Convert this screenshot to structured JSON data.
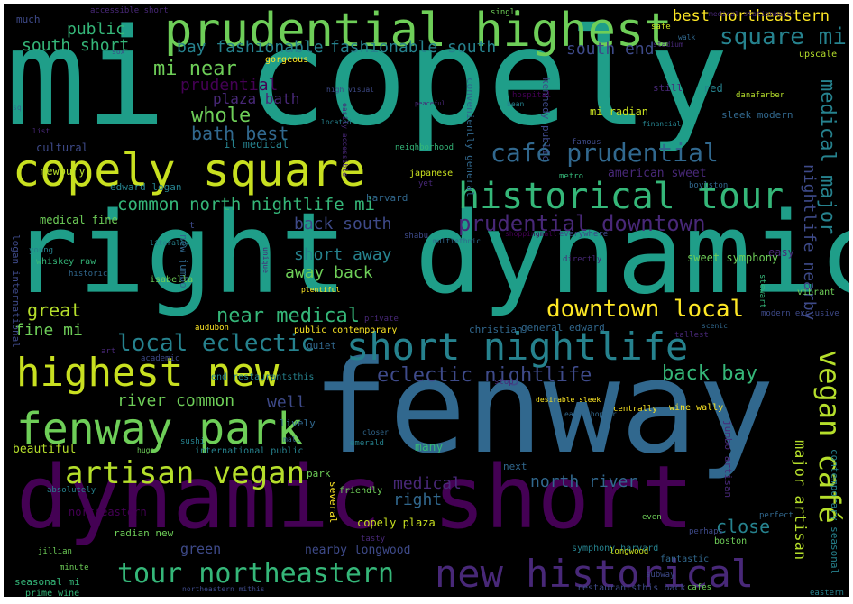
{
  "background": "#000000",
  "palette": [
    "#440154",
    "#482878",
    "#3e4a89",
    "#31688e",
    "#26828e",
    "#1f9e89",
    "#35b779",
    "#6ece58",
    "#b5de2b",
    "#fde725"
  ],
  "words": [
    {
      "text": "mi copely",
      "color": "#1f9e89"
    },
    {
      "text": "right dynamic",
      "color": "#1f9e89"
    },
    {
      "text": "fenway",
      "color": "#31688e"
    },
    {
      "text": "dynamic short",
      "color": "#440154"
    },
    {
      "text": "prudential highest",
      "color": "#6ece58"
    },
    {
      "text": "copely square",
      "color": "#c8e020"
    },
    {
      "text": "historical tour",
      "color": "#35b779"
    },
    {
      "text": "short nightlife",
      "color": "#26828e"
    },
    {
      "text": "highest new",
      "color": "#c8e020"
    },
    {
      "text": "fenway park",
      "color": "#6ece58"
    },
    {
      "text": "new historical",
      "color": "#482878"
    },
    {
      "text": "artisan vegan",
      "color": "#b5de2b"
    },
    {
      "text": "tour northeastern",
      "color": "#35b779"
    },
    {
      "text": "vegan café",
      "color": "#b5de2b"
    },
    {
      "text": "café prudential",
      "color": "#31688e"
    },
    {
      "text": "prudential downtown",
      "color": "#482878"
    },
    {
      "text": "downtown local",
      "color": "#fde725"
    },
    {
      "text": "local eclectic",
      "color": "#26828e"
    },
    {
      "text": "eclectic nightlife",
      "color": "#3e4a89"
    },
    {
      "text": "square mi",
      "color": "#26828e"
    },
    {
      "text": "best northeastern",
      "color": "#fde725"
    },
    {
      "text": "common north nightlife mi",
      "color": "#35b779"
    },
    {
      "text": "bay fashionable",
      "color": "#26828e"
    },
    {
      "text": "fashionable south",
      "color": "#26828e"
    },
    {
      "text": "south end",
      "color": "#3e4a89"
    },
    {
      "text": "public",
      "color": "#35b779"
    },
    {
      "text": "south short",
      "color": "#35b779"
    },
    {
      "text": "mi near",
      "color": "#6ece58"
    },
    {
      "text": "prudential",
      "color": "#440154"
    },
    {
      "text": "plaza bath",
      "color": "#482878"
    },
    {
      "text": "whole",
      "color": "#6ece58"
    },
    {
      "text": "bath best",
      "color": "#31688e"
    },
    {
      "text": "medical major",
      "color": "#26828e"
    },
    {
      "text": "nightlife nearby",
      "color": "#3e4a89"
    },
    {
      "text": "back south",
      "color": "#3e4a89"
    },
    {
      "text": "short away",
      "color": "#26828e"
    },
    {
      "text": "away back",
      "color": "#6ece58"
    },
    {
      "text": "great",
      "color": "#b5de2b"
    },
    {
      "text": "near medical",
      "color": "#35b779"
    },
    {
      "text": "fine mi",
      "color": "#6ece58"
    },
    {
      "text": "back bay",
      "color": "#35b779"
    },
    {
      "text": "river common",
      "color": "#6ece58"
    },
    {
      "text": "well",
      "color": "#3e4a89"
    },
    {
      "text": "medical",
      "color": "#482878"
    },
    {
      "text": "north river",
      "color": "#31688e"
    },
    {
      "text": "right",
      "color": "#31688e"
    },
    {
      "text": "close",
      "color": "#26828e"
    },
    {
      "text": "major artisan",
      "color": "#b5de2b"
    },
    {
      "text": "green",
      "color": "#3e4a89"
    },
    {
      "text": "nearby longwood",
      "color": "#3e4a89"
    },
    {
      "text": "copely plaza",
      "color": "#c8e020"
    },
    {
      "text": "american sweet",
      "color": "#482878"
    },
    {
      "text": "edward logan",
      "color": "#26828e"
    },
    {
      "text": "newbury",
      "color": "#b5de2b"
    },
    {
      "text": "medical fine",
      "color": "#6ece58"
    },
    {
      "text": "cultural",
      "color": "#3e4a89"
    },
    {
      "text": "il medical",
      "color": "#26828e"
    },
    {
      "text": "mi radian",
      "color": "#c8e020"
    },
    {
      "text": "red",
      "color": "#26828e"
    },
    {
      "text": "still",
      "color": "#482878"
    },
    {
      "text": "sleek modern",
      "color": "#31688e"
    },
    {
      "text": "much",
      "color": "#3e4a89"
    },
    {
      "text": "gorgeous",
      "color": "#fde725"
    },
    {
      "text": "easy",
      "color": "#482878"
    },
    {
      "text": "sweet symphony",
      "color": "#6ece58"
    },
    {
      "text": "harvard",
      "color": "#31688e"
    },
    {
      "text": "japanese",
      "color": "#c8e020"
    },
    {
      "text": "neighborhood",
      "color": "#35b779"
    },
    {
      "text": "christian",
      "color": "#31688e"
    },
    {
      "text": "public contemporary",
      "color": "#fde725"
    },
    {
      "text": "general edward",
      "color": "#31688e"
    },
    {
      "text": "quiet",
      "color": "#31688e"
    },
    {
      "text": "end restaurantsthis",
      "color": "#26828e"
    },
    {
      "text": "international public",
      "color": "#26828e"
    },
    {
      "text": "beautiful",
      "color": "#b5de2b"
    },
    {
      "text": "jumbo artisan",
      "color": "#482878"
    },
    {
      "text": "wine wally",
      "color": "#fde725"
    },
    {
      "text": "lively",
      "color": "#31688e"
    },
    {
      "text": "many",
      "color": "#35b779"
    },
    {
      "text": "park",
      "color": "#6ece58"
    },
    {
      "text": "several",
      "color": "#fde725"
    },
    {
      "text": "next",
      "color": "#31688e"
    },
    {
      "text": "northeastern",
      "color": "#440154"
    },
    {
      "text": "radian new",
      "color": "#6ece58"
    },
    {
      "text": "seasonal mi",
      "color": "#35b779"
    },
    {
      "text": "prime wine",
      "color": "#35b779"
    },
    {
      "text": "symphony harvard",
      "color": "#26828e"
    },
    {
      "text": "boston",
      "color": "#6ece58"
    },
    {
      "text": "fantastic",
      "color": "#31688e"
    },
    {
      "text": "longwood",
      "color": "#c8e020"
    },
    {
      "text": "perhaps",
      "color": "#3e4a89"
    },
    {
      "text": "even",
      "color": "#6ece58"
    },
    {
      "text": "restaurantsthis back",
      "color": "#3e4a89"
    },
    {
      "text": "cafes",
      "color": "#6ece58"
    },
    {
      "text": "new jumbo",
      "color": "#31688e"
    },
    {
      "text": "logan international",
      "color": "#3e4a89"
    },
    {
      "text": "contemporary seasonal",
      "color": "#26828e"
    },
    {
      "text": "kennedy public",
      "color": "#3e4a89"
    },
    {
      "text": "conveniently general",
      "color": "#31688e"
    },
    {
      "text": "hospital",
      "color": "#440154"
    },
    {
      "text": "metro",
      "color": "#35b779"
    },
    {
      "text": "famous",
      "color": "#3e4a89"
    },
    {
      "text": "boylston",
      "color": "#31688e"
    },
    {
      "text": "t",
      "color": "#3e4a89"
    },
    {
      "text": "emerald",
      "color": "#26828e"
    },
    {
      "text": "friendly",
      "color": "#6ece58"
    },
    {
      "text": "tasty",
      "color": "#482878"
    },
    {
      "text": "jillian",
      "color": "#6ece58"
    },
    {
      "text": "minute",
      "color": "#6ece58"
    },
    {
      "text": "absolutely",
      "color": "#26828e"
    },
    {
      "text": "sushi",
      "color": "#26828e"
    },
    {
      "text": "huge",
      "color": "#6ece58"
    },
    {
      "text": "mall",
      "color": "#31688e"
    },
    {
      "text": "private",
      "color": "#482878"
    },
    {
      "text": "audubon",
      "color": "#fde725"
    },
    {
      "text": "art",
      "color": "#482878"
    },
    {
      "text": "academic",
      "color": "#3e4a89"
    },
    {
      "text": "isabella",
      "color": "#6ece58"
    },
    {
      "text": "historic",
      "color": "#31688e"
    },
    {
      "text": "young",
      "color": "#26828e"
    },
    {
      "text": "whiskey raw",
      "color": "#35b779"
    },
    {
      "text": "literally",
      "color": "#26828e"
    },
    {
      "text": "plentiful",
      "color": "#fde725"
    },
    {
      "text": "unique",
      "color": "#482878"
    },
    {
      "text": "shabu",
      "color": "#3e4a89"
    },
    {
      "text": "multiethnic",
      "color": "#31688e"
    },
    {
      "text": "directly",
      "color": "#482878"
    },
    {
      "text": "everywhere",
      "color": "#3e4a89"
    },
    {
      "text": "shoppingmall",
      "color": "#440154"
    },
    {
      "text": "stewart",
      "color": "#35b779"
    },
    {
      "text": "vibrant",
      "color": "#6ece58"
    },
    {
      "text": "modern exclusive",
      "color": "#3e4a89"
    },
    {
      "text": "scenic",
      "color": "#31688e"
    },
    {
      "text": "tallest",
      "color": "#482878"
    },
    {
      "text": "east shopper",
      "color": "#31688e"
    },
    {
      "text": "centrally",
      "color": "#fde725"
    },
    {
      "text": "desirable sleek",
      "color": "#fde725"
    },
    {
      "text": "closer",
      "color": "#31688e"
    },
    {
      "text": "stop",
      "color": "#482878"
    },
    {
      "text": "eastern",
      "color": "#26828e"
    },
    {
      "text": "subway",
      "color": "#3e4a89"
    },
    {
      "text": "perfect",
      "color": "#31688e"
    },
    {
      "text": "upscale",
      "color": "#b5de2b"
    },
    {
      "text": "safe",
      "color": "#c8e020"
    },
    {
      "text": "walk",
      "color": "#31688e"
    },
    {
      "text": "stadium",
      "color": "#482878"
    },
    {
      "text": "danafarber",
      "color": "#b5de2b"
    },
    {
      "text": "financial",
      "color": "#26828e"
    },
    {
      "text": "single",
      "color": "#6ece58"
    },
    {
      "text": "accessible short",
      "color": "#482878"
    },
    {
      "text": "sox",
      "color": "#3e4a89"
    },
    {
      "text": "list",
      "color": "#482878"
    },
    {
      "text": "sq",
      "color": "#31688e"
    },
    {
      "text": "high visual",
      "color": "#3e4a89"
    },
    {
      "text": "located",
      "color": "#26828e"
    },
    {
      "text": "bean",
      "color": "#26828e"
    },
    {
      "text": "peaceful",
      "color": "#482878"
    },
    {
      "text": "easily accessible",
      "color": "#482878"
    },
    {
      "text": "yet",
      "color": "#482878"
    },
    {
      "text": "medical stationmajor",
      "color": "#482878"
    },
    {
      "text": "northeastern mithis",
      "color": "#3e4a89"
    }
  ]
}
